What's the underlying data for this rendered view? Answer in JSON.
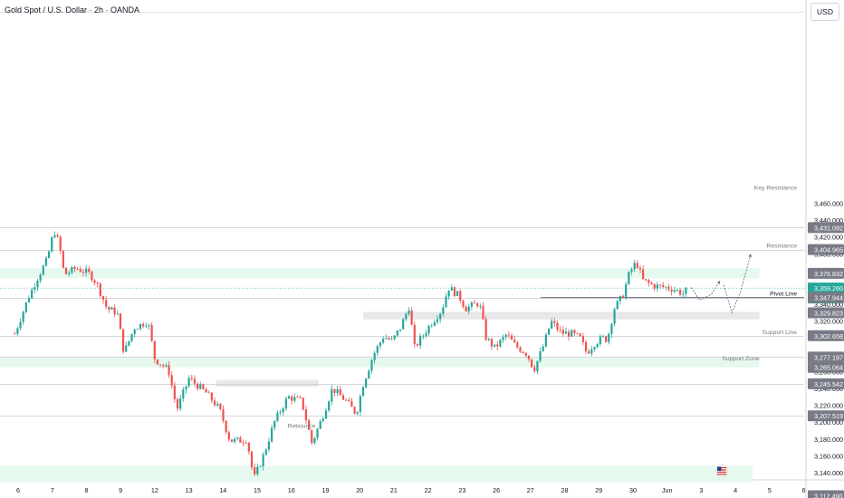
{
  "header": {
    "title": "Gold Spot / U.S. Dollar · 2h · OANDA",
    "currency": "USD"
  },
  "colors": {
    "up": "#26a69a",
    "down": "#ef5350",
    "zone_green": "#e6f9ee",
    "zone_gray": "#e8e8ea",
    "label_bg": "#787b86",
    "current_price_bg": "#26a69a",
    "text": "#131722",
    "muted_text": "#787b86",
    "line": "#d1d4dc"
  },
  "chart_data": {
    "type": "candlestick",
    "symbol": "Gold Spot / U.S. Dollar",
    "timeframe": "2h",
    "source": "OANDA",
    "y_ticks": [
      3460,
      3440,
      3420,
      3400,
      3380,
      3360,
      3340,
      3320,
      3300,
      3280,
      3260,
      3240,
      3220,
      3200,
      3180,
      3160,
      3140
    ],
    "y_tick_labels": [
      "3,460.000",
      "3,440.000",
      "3,420.000",
      "3,400.000",
      "3,380.000",
      "3,360.000",
      "3,340.000",
      "3,320.000",
      "3,300.000",
      "3,280.000",
      "3,260.000",
      "3,240.000",
      "3,220.000",
      "3,200.000",
      "3,180.000",
      "3,160.000",
      "3,140.000"
    ],
    "x_ticks": [
      {
        "label": "6",
        "x": 5
      },
      {
        "label": "7",
        "x": 6
      },
      {
        "label": "8",
        "x": 7
      },
      {
        "label": "9",
        "x": 8
      },
      {
        "label": "12",
        "x": 9
      },
      {
        "label": "13",
        "x": 10
      },
      {
        "label": "14",
        "x": 11
      },
      {
        "label": "15",
        "x": 12
      },
      {
        "label": "16",
        "x": 13
      },
      {
        "label": "19",
        "x": 14
      },
      {
        "label": "20",
        "x": 15
      },
      {
        "label": "21",
        "x": 16
      },
      {
        "label": "22",
        "x": 17
      },
      {
        "label": "23",
        "x": 18
      },
      {
        "label": "26",
        "x": 19
      },
      {
        "label": "27",
        "x": 20
      },
      {
        "label": "28",
        "x": 21
      },
      {
        "label": "29",
        "x": 22
      },
      {
        "label": "30",
        "x": 23
      },
      {
        "label": "Jun",
        "x": 24
      },
      {
        "label": "3",
        "x": 25
      },
      {
        "label": "4",
        "x": 26
      },
      {
        "label": "5",
        "x": 27
      },
      {
        "label": "6",
        "x": 28
      }
    ],
    "price_labels": [
      {
        "text": "3,431.092",
        "value": 3431.092,
        "kind": "gray"
      },
      {
        "text": "3,404.965",
        "value": 3404.965,
        "kind": "gray"
      },
      {
        "text": "3,376.832",
        "value": 3376.832,
        "kind": "gray"
      },
      {
        "text": "3,359.260",
        "value": 3359.26,
        "kind": "current",
        "countdown": "01:18:05"
      },
      {
        "text": "3,347.944",
        "value": 3347.944,
        "kind": "gray"
      },
      {
        "text": "3,329.823",
        "value": 3329.823,
        "kind": "gray"
      },
      {
        "text": "3,302.658",
        "value": 3302.658,
        "kind": "gray"
      },
      {
        "text": "3,277.197",
        "value": 3277.197,
        "kind": "gray"
      },
      {
        "text": "3,265.064",
        "value": 3265.064,
        "kind": "gray"
      },
      {
        "text": "3,245.542",
        "value": 3245.542,
        "kind": "gray"
      },
      {
        "text": "3,207.519",
        "value": 3207.519,
        "kind": "gray"
      },
      {
        "text": "3,112.490",
        "value": 3112.49,
        "kind": "gray"
      }
    ],
    "horizontal_lines": [
      3431.092,
      3404.965,
      3347.944,
      3302.658,
      3277.197,
      3245.542,
      3207.519
    ],
    "zones": [
      {
        "kind": "green",
        "from": 3371,
        "to": 3383,
        "x_from": 0,
        "x_to": 26.7
      },
      {
        "kind": "gray",
        "from": 3322,
        "to": 3331,
        "x_from": 15.1,
        "x_to": 26.7
      },
      {
        "kind": "green",
        "from": 3265,
        "to": 3277,
        "x_from": 0,
        "x_to": 26.7
      },
      {
        "kind": "gray",
        "from": 3242,
        "to": 3250,
        "x_from": 10.8,
        "x_to": 13.8
      },
      {
        "kind": "green",
        "from": 3128,
        "to": 3148,
        "x_from": 0,
        "x_to": 26.5
      }
    ],
    "annotations": [
      {
        "text": "Key Resistance",
        "value": 3474,
        "x": 27.8
      },
      {
        "text": "Resistance",
        "value": 3404.965,
        "x": 27.8
      },
      {
        "text": "Pivot Line",
        "value": 3347.944,
        "x": 27.8
      },
      {
        "text": "Support Line",
        "value": 3302.658,
        "x": 27.8
      },
      {
        "text": "Support Zone",
        "value": 3271,
        "x": 26.7
      },
      {
        "text": "Rebounce",
        "value": 3202,
        "x": 13.3
      }
    ],
    "projection": [
      {
        "x": 24.7,
        "y": 3360
      },
      {
        "x": 24.95,
        "y": 3345
      },
      {
        "x": 25.3,
        "y": 3352
      },
      {
        "x": 25.55,
        "y": 3368
      },
      {
        "x": 25.65,
        "y": 3363
      },
      {
        "x": 25.9,
        "y": 3330
      },
      {
        "x": 26.15,
        "y": 3355
      },
      {
        "x": 26.45,
        "y": 3400
      }
    ],
    "candles_x_start": 4.9,
    "candles_x_end": 24.55,
    "waypoints": [
      [
        4.9,
        3305
      ],
      [
        5.06,
        3322
      ],
      [
        5.3,
        3348
      ],
      [
        5.55,
        3370
      ],
      [
        5.85,
        3393
      ],
      [
        6.05,
        3428
      ],
      [
        6.2,
        3412
      ],
      [
        6.35,
        3375
      ],
      [
        6.7,
        3383
      ],
      [
        7.1,
        3376
      ],
      [
        7.3,
        3365
      ],
      [
        7.6,
        3335
      ],
      [
        7.9,
        3330
      ],
      [
        8.1,
        3282
      ],
      [
        8.4,
        3312
      ],
      [
        8.8,
        3320
      ],
      [
        9.0,
        3275
      ],
      [
        9.4,
        3262
      ],
      [
        9.65,
        3215
      ],
      [
        10.0,
        3252
      ],
      [
        10.5,
        3235
      ],
      [
        10.9,
        3215
      ],
      [
        11.2,
        3178
      ],
      [
        11.5,
        3178
      ],
      [
        11.7,
        3180
      ],
      [
        11.9,
        3132
      ],
      [
        12.2,
        3162
      ],
      [
        12.5,
        3200
      ],
      [
        12.9,
        3230
      ],
      [
        13.3,
        3225
      ],
      [
        13.6,
        3175
      ],
      [
        13.9,
        3205
      ],
      [
        14.2,
        3240
      ],
      [
        14.6,
        3225
      ],
      [
        14.9,
        3210
      ],
      [
        15.1,
        3245
      ],
      [
        15.4,
        3280
      ],
      [
        15.7,
        3302
      ],
      [
        15.95,
        3296
      ],
      [
        16.2,
        3313
      ],
      [
        16.45,
        3338
      ],
      [
        16.6,
        3288
      ],
      [
        16.8,
        3300
      ],
      [
        17.1,
        3318
      ],
      [
        17.4,
        3333
      ],
      [
        17.6,
        3360
      ],
      [
        17.9,
        3350
      ],
      [
        18.1,
        3335
      ],
      [
        18.5,
        3342
      ],
      [
        18.7,
        3300
      ],
      [
        18.95,
        3288
      ],
      [
        19.3,
        3304
      ],
      [
        19.55,
        3291
      ],
      [
        19.9,
        3281
      ],
      [
        20.1,
        3262
      ],
      [
        20.4,
        3293
      ],
      [
        20.6,
        3320
      ],
      [
        20.9,
        3306
      ],
      [
        21.2,
        3305
      ],
      [
        21.45,
        3300
      ],
      [
        21.65,
        3282
      ],
      [
        21.85,
        3293
      ],
      [
        22.1,
        3300
      ],
      [
        22.25,
        3298
      ],
      [
        22.45,
        3335
      ],
      [
        22.7,
        3350
      ],
      [
        22.9,
        3378
      ],
      [
        23.1,
        3390
      ],
      [
        23.3,
        3368
      ],
      [
        23.6,
        3362
      ],
      [
        24.0,
        3360
      ],
      [
        24.2,
        3358
      ],
      [
        24.5,
        3352
      ],
      [
        24.55,
        3356
      ]
    ]
  }
}
